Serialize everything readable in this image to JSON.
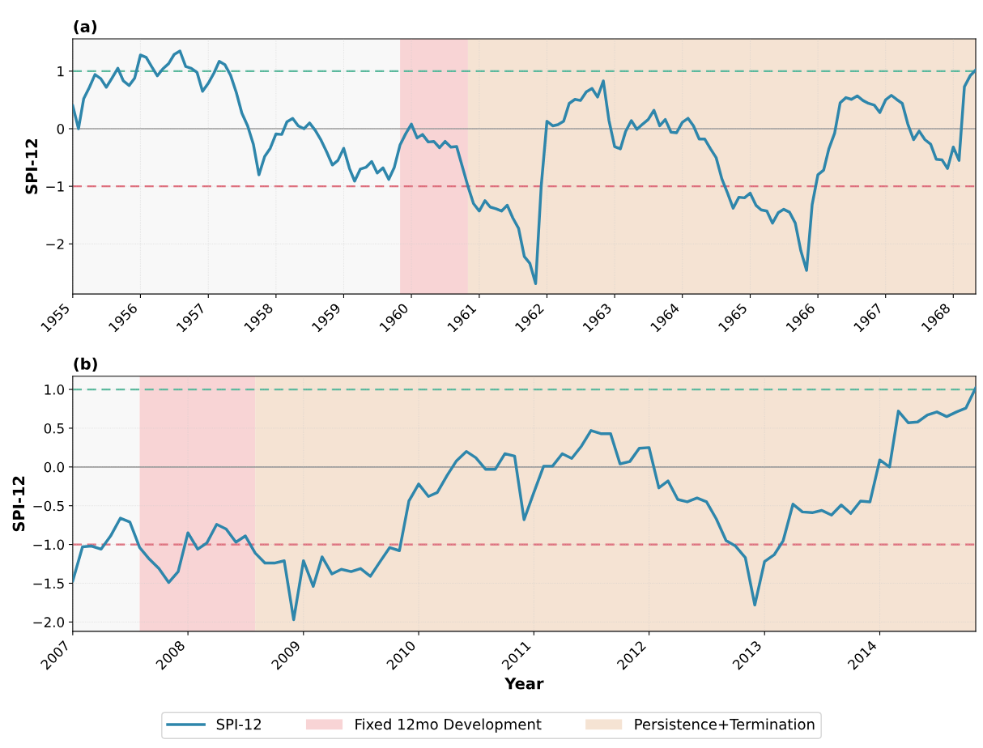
{
  "chart_data": [
    {
      "type": "line",
      "title": "(a)",
      "ylabel": "SPI-12",
      "grid": true,
      "x": [
        "1955-01",
        "1955-02",
        "1955-03",
        "1955-04",
        "1955-05",
        "1955-06",
        "1955-07",
        "1955-08",
        "1955-09",
        "1955-10",
        "1955-11",
        "1955-12",
        "1956-01",
        "1956-02",
        "1956-03",
        "1956-04",
        "1956-05",
        "1956-06",
        "1956-07",
        "1956-08",
        "1956-09",
        "1956-10",
        "1956-11",
        "1956-12",
        "1957-01",
        "1957-02",
        "1957-03",
        "1957-04",
        "1957-05",
        "1957-06",
        "1957-07",
        "1957-08",
        "1957-09",
        "1957-10",
        "1957-11",
        "1957-12",
        "1958-01",
        "1958-02",
        "1958-03",
        "1958-04",
        "1958-05",
        "1958-06",
        "1958-07",
        "1958-08",
        "1958-09",
        "1958-10",
        "1958-11",
        "1958-12",
        "1959-01",
        "1959-02",
        "1959-03",
        "1959-04",
        "1959-05",
        "1959-06",
        "1959-07",
        "1959-08",
        "1959-09",
        "1959-10",
        "1959-11",
        "1959-12",
        "1960-01",
        "1960-02",
        "1960-03",
        "1960-04",
        "1960-05",
        "1960-06",
        "1960-07",
        "1960-08",
        "1960-09",
        "1960-10",
        "1960-11",
        "1960-12",
        "1961-01",
        "1961-02",
        "1961-03",
        "1961-04",
        "1961-05",
        "1961-06",
        "1961-07",
        "1961-08",
        "1961-09",
        "1961-10",
        "1961-11",
        "1961-12",
        "1962-01",
        "1962-02",
        "1962-03",
        "1962-04",
        "1962-05",
        "1962-06",
        "1962-07",
        "1962-08",
        "1962-09",
        "1962-10",
        "1962-11",
        "1962-12",
        "1963-01",
        "1963-02",
        "1963-03",
        "1963-04",
        "1963-05",
        "1963-06",
        "1963-07",
        "1963-08",
        "1963-09",
        "1963-10",
        "1963-11",
        "1963-12",
        "1964-01",
        "1964-02",
        "1964-03",
        "1964-04",
        "1964-05",
        "1964-06",
        "1964-07",
        "1964-08",
        "1964-09",
        "1964-10",
        "1964-11",
        "1964-12",
        "1965-01",
        "1965-02",
        "1965-03",
        "1965-04",
        "1965-05",
        "1965-06",
        "1965-07",
        "1965-08",
        "1965-09",
        "1965-10",
        "1965-11",
        "1965-12",
        "1966-01",
        "1966-02",
        "1966-03",
        "1966-04",
        "1966-05",
        "1966-06",
        "1966-07",
        "1966-08",
        "1966-09",
        "1966-10",
        "1966-11",
        "1966-12",
        "1967-01",
        "1967-02",
        "1967-03",
        "1967-04",
        "1967-05",
        "1967-06",
        "1967-07",
        "1967-08",
        "1967-09",
        "1967-10",
        "1967-11",
        "1967-12",
        "1968-01",
        "1968-02",
        "1968-03",
        "1968-04",
        "1968-05"
      ],
      "xlim": [
        "1955-01",
        "1968-05"
      ],
      "xticks": [
        "1955",
        "1956",
        "1957",
        "1958",
        "1959",
        "1960",
        "1961",
        "1962",
        "1963",
        "1964",
        "1965",
        "1966",
        "1967",
        "1968"
      ],
      "ylim": [
        -2.87,
        1.56
      ],
      "yticks": [
        {
          "value": -2,
          "label": "−2"
        },
        {
          "value": -1,
          "label": "−1"
        },
        0,
        1
      ],
      "bands": [
        {
          "axis": "x",
          "from": "1955-01",
          "to": "1959-11",
          "color": "#f8f8f8"
        },
        {
          "axis": "x",
          "from": "1959-11",
          "to": "1960-11",
          "color": "#f8d4d5"
        },
        {
          "axis": "x",
          "from": "1960-11",
          "to": "1968-05",
          "color": "#f5e3d3"
        }
      ],
      "ref_lines": [
        {
          "axis": "y",
          "value": 1,
          "color": "#52b89a",
          "line_style": "dashed"
        },
        {
          "axis": "y",
          "value": -1,
          "color": "#e06474",
          "line_style": "dashed"
        },
        {
          "axis": "y",
          "value": 0,
          "color": "#999999",
          "line_style": "solid"
        }
      ],
      "series": [
        {
          "color": "#2e86ab",
          "values": [
            0.4,
            0.0,
            0.52,
            0.72,
            0.94,
            0.87,
            0.72,
            0.88,
            1.05,
            0.83,
            0.75,
            0.88,
            1.28,
            1.24,
            1.08,
            0.92,
            1.04,
            1.13,
            1.29,
            1.35,
            1.08,
            1.05,
            0.98,
            0.65,
            0.79,
            0.97,
            1.17,
            1.11,
            0.93,
            0.63,
            0.27,
            0.05,
            -0.27,
            -0.8,
            -0.48,
            -0.34,
            -0.09,
            -0.1,
            0.12,
            0.18,
            0.05,
            0.0,
            0.1,
            -0.03,
            -0.2,
            -0.4,
            -0.63,
            -0.55,
            -0.34,
            -0.69,
            -0.91,
            -0.7,
            -0.67,
            -0.57,
            -0.77,
            -0.68,
            -0.88,
            -0.67,
            -0.28,
            -0.09,
            0.08,
            -0.16,
            -0.1,
            -0.23,
            -0.22,
            -0.33,
            -0.22,
            -0.32,
            -0.31,
            -0.65,
            -1.0,
            -1.3,
            -1.43,
            -1.25,
            -1.36,
            -1.39,
            -1.43,
            -1.33,
            -1.55,
            -1.73,
            -2.22,
            -2.34,
            -2.69,
            -1.0,
            0.13,
            0.05,
            0.07,
            0.13,
            0.44,
            0.51,
            0.49,
            0.64,
            0.7,
            0.55,
            0.83,
            0.15,
            -0.31,
            -0.35,
            -0.05,
            0.14,
            -0.01,
            0.08,
            0.16,
            0.32,
            0.05,
            0.16,
            -0.06,
            -0.07,
            0.11,
            0.18,
            0.05,
            -0.18,
            -0.18,
            -0.35,
            -0.5,
            -0.87,
            -1.12,
            -1.38,
            -1.19,
            -1.2,
            -1.12,
            -1.33,
            -1.41,
            -1.43,
            -1.64,
            -1.46,
            -1.4,
            -1.45,
            -1.64,
            -2.12,
            -2.46,
            -1.32,
            -0.8,
            -0.72,
            -0.35,
            -0.08,
            0.45,
            0.54,
            0.51,
            0.57,
            0.49,
            0.44,
            0.41,
            0.28,
            0.5,
            0.58,
            0.51,
            0.44,
            0.08,
            -0.19,
            -0.04,
            -0.19,
            -0.27,
            -0.53,
            -0.54,
            -0.69,
            -0.32,
            -0.55,
            0.73,
            0.92,
            1.02
          ]
        }
      ]
    },
    {
      "type": "line",
      "title": "(b)",
      "xlabel": "Year",
      "ylabel": "SPI-12",
      "grid": true,
      "legend": "bottom",
      "x": [
        "2007-01",
        "2007-02",
        "2007-03",
        "2007-04",
        "2007-05",
        "2007-06",
        "2007-07",
        "2007-08",
        "2007-09",
        "2007-10",
        "2007-11",
        "2007-12",
        "2008-01",
        "2008-02",
        "2008-03",
        "2008-04",
        "2008-05",
        "2008-06",
        "2008-07",
        "2008-08",
        "2008-09",
        "2008-10",
        "2008-11",
        "2008-12",
        "2009-01",
        "2009-02",
        "2009-03",
        "2009-04",
        "2009-05",
        "2009-06",
        "2009-07",
        "2009-08",
        "2009-09",
        "2009-10",
        "2009-11",
        "2009-12",
        "2010-01",
        "2010-02",
        "2010-03",
        "2010-04",
        "2010-05",
        "2010-06",
        "2010-07",
        "2010-08",
        "2010-09",
        "2010-10",
        "2010-11",
        "2010-12",
        "2011-01",
        "2011-02",
        "2011-03",
        "2011-04",
        "2011-05",
        "2011-06",
        "2011-07",
        "2011-08",
        "2011-09",
        "2011-10",
        "2011-11",
        "2011-12",
        "2012-01",
        "2012-02",
        "2012-03",
        "2012-04",
        "2012-05",
        "2012-06",
        "2012-07",
        "2012-08",
        "2012-09",
        "2012-10",
        "2012-11",
        "2012-12",
        "2013-01",
        "2013-02",
        "2013-03",
        "2013-04",
        "2013-05",
        "2013-06",
        "2013-07",
        "2013-08",
        "2013-09",
        "2013-10",
        "2013-11",
        "2013-12",
        "2014-01",
        "2014-02",
        "2014-03",
        "2014-04",
        "2014-05",
        "2014-06",
        "2014-07",
        "2014-08",
        "2014-09",
        "2014-10",
        "2014-11"
      ],
      "xlim": [
        "2007-01",
        "2014-11"
      ],
      "xticks": [
        "2007",
        "2008",
        "2009",
        "2010",
        "2011",
        "2012",
        "2013",
        "2014"
      ],
      "ylim": [
        -2.12,
        1.17
      ],
      "yticks": [
        {
          "value": -2,
          "label": "−2.0"
        },
        {
          "value": -1.5,
          "label": "−1.5"
        },
        {
          "value": -1,
          "label": "−1.0"
        },
        {
          "value": -0.5,
          "label": "−0.5"
        },
        {
          "value": 0,
          "label": "0.0"
        },
        {
          "value": 0.5,
          "label": "0.5"
        },
        {
          "value": 1,
          "label": "1.0"
        }
      ],
      "bands": [
        {
          "axis": "x",
          "from": "2007-01",
          "to": "2007-08",
          "color": "#f8f8f8"
        },
        {
          "axis": "x",
          "from": "2007-08",
          "to": "2008-08",
          "label": "Fixed 12mo Development",
          "color": "#f8d4d5"
        },
        {
          "axis": "x",
          "from": "2008-08",
          "to": "2014-11",
          "label": "Persistence+Termination",
          "color": "#f5e3d3"
        }
      ],
      "ref_lines": [
        {
          "axis": "y",
          "value": 1,
          "color": "#52b89a",
          "line_style": "dashed"
        },
        {
          "axis": "y",
          "value": -1,
          "color": "#e06474",
          "line_style": "dashed"
        },
        {
          "axis": "y",
          "value": 0,
          "color": "#999999",
          "line_style": "solid"
        }
      ],
      "series": [
        {
          "name": "SPI-12",
          "color": "#2e86ab",
          "values": [
            -1.47,
            -1.03,
            -1.02,
            -1.06,
            -0.89,
            -0.66,
            -0.71,
            -1.04,
            -1.19,
            -1.31,
            -1.49,
            -1.35,
            -0.85,
            -1.06,
            -0.98,
            -0.74,
            -0.8,
            -0.97,
            -0.89,
            -1.11,
            -1.24,
            -1.24,
            -1.21,
            -1.97,
            -1.21,
            -1.54,
            -1.16,
            -1.38,
            -1.32,
            -1.35,
            -1.31,
            -1.41,
            -1.22,
            -1.04,
            -1.08,
            -0.44,
            -0.22,
            -0.38,
            -0.33,
            -0.11,
            0.08,
            0.2,
            0.12,
            -0.03,
            -0.03,
            0.17,
            0.14,
            -0.68,
            -0.33,
            0.01,
            0.01,
            0.17,
            0.11,
            0.27,
            0.47,
            0.43,
            0.43,
            0.04,
            0.07,
            0.24,
            0.25,
            -0.27,
            -0.18,
            -0.42,
            -0.45,
            -0.4,
            -0.45,
            -0.67,
            -0.95,
            -1.02,
            -1.17,
            -1.78,
            -1.22,
            -1.13,
            -0.95,
            -0.48,
            -0.58,
            -0.59,
            -0.56,
            -0.62,
            -0.49,
            -0.6,
            -0.44,
            -0.45,
            0.09,
            0.0,
            0.72,
            0.57,
            0.58,
            0.67,
            0.71,
            0.65,
            0.71,
            0.76,
            1.02
          ]
        }
      ]
    }
  ]
}
